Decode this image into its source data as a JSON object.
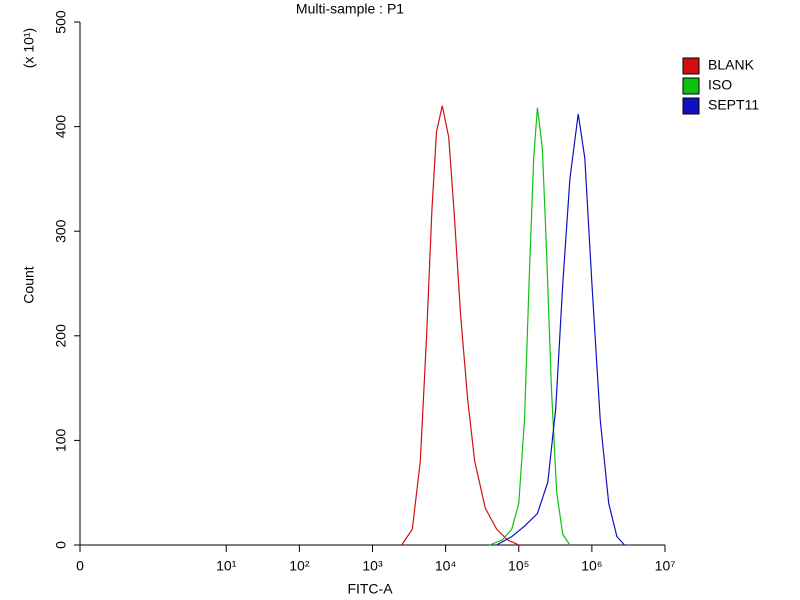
{
  "chart_data": {
    "type": "line",
    "title": "Multi-sample : P1",
    "xlabel": "FITC-A",
    "ylabel": "Count",
    "yunit": "(x 10¹)",
    "xscale": "symlog",
    "xlim": [
      0,
      10000000
    ],
    "xticks": [
      0,
      {
        "value": 10,
        "label": "10¹"
      },
      {
        "value": 100,
        "label": "10²"
      },
      {
        "value": 1000,
        "label": "10³"
      },
      {
        "value": 10000,
        "label": "10⁴"
      },
      {
        "value": 100000,
        "label": "10⁵"
      },
      {
        "value": 1000000,
        "label": "10⁶"
      },
      {
        "value": 10000000,
        "label": "10⁷"
      }
    ],
    "ylim": [
      0,
      500
    ],
    "yticks": [
      0,
      100,
      200,
      300,
      400,
      500
    ],
    "legend": "right",
    "series": [
      {
        "name": "BLANK",
        "color": "#d01010",
        "x": [
          2500,
          3500,
          4500,
          5500,
          6500,
          7500,
          9000,
          11000,
          13000,
          16000,
          20000,
          25000,
          35000,
          50000,
          70000,
          100000
        ],
        "values": [
          0,
          15,
          80,
          200,
          320,
          395,
          420,
          390,
          320,
          220,
          140,
          80,
          35,
          15,
          5,
          0
        ]
      },
      {
        "name": "ISO",
        "color": "#10c010",
        "x": [
          40000,
          60000,
          80000,
          100000,
          120000,
          140000,
          160000,
          180000,
          210000,
          240000,
          280000,
          330000,
          400000,
          500000
        ],
        "values": [
          0,
          5,
          15,
          40,
          120,
          260,
          370,
          418,
          380,
          280,
          150,
          50,
          10,
          0
        ]
      },
      {
        "name": "SEPT11",
        "color": "#1010c0",
        "x": [
          50000,
          80000,
          120000,
          180000,
          250000,
          320000,
          400000,
          500000,
          650000,
          800000,
          1000000,
          1300000,
          1700000,
          2200000,
          2800000
        ],
        "values": [
          0,
          8,
          18,
          30,
          60,
          130,
          250,
          350,
          412,
          370,
          250,
          120,
          40,
          8,
          0
        ]
      }
    ]
  }
}
